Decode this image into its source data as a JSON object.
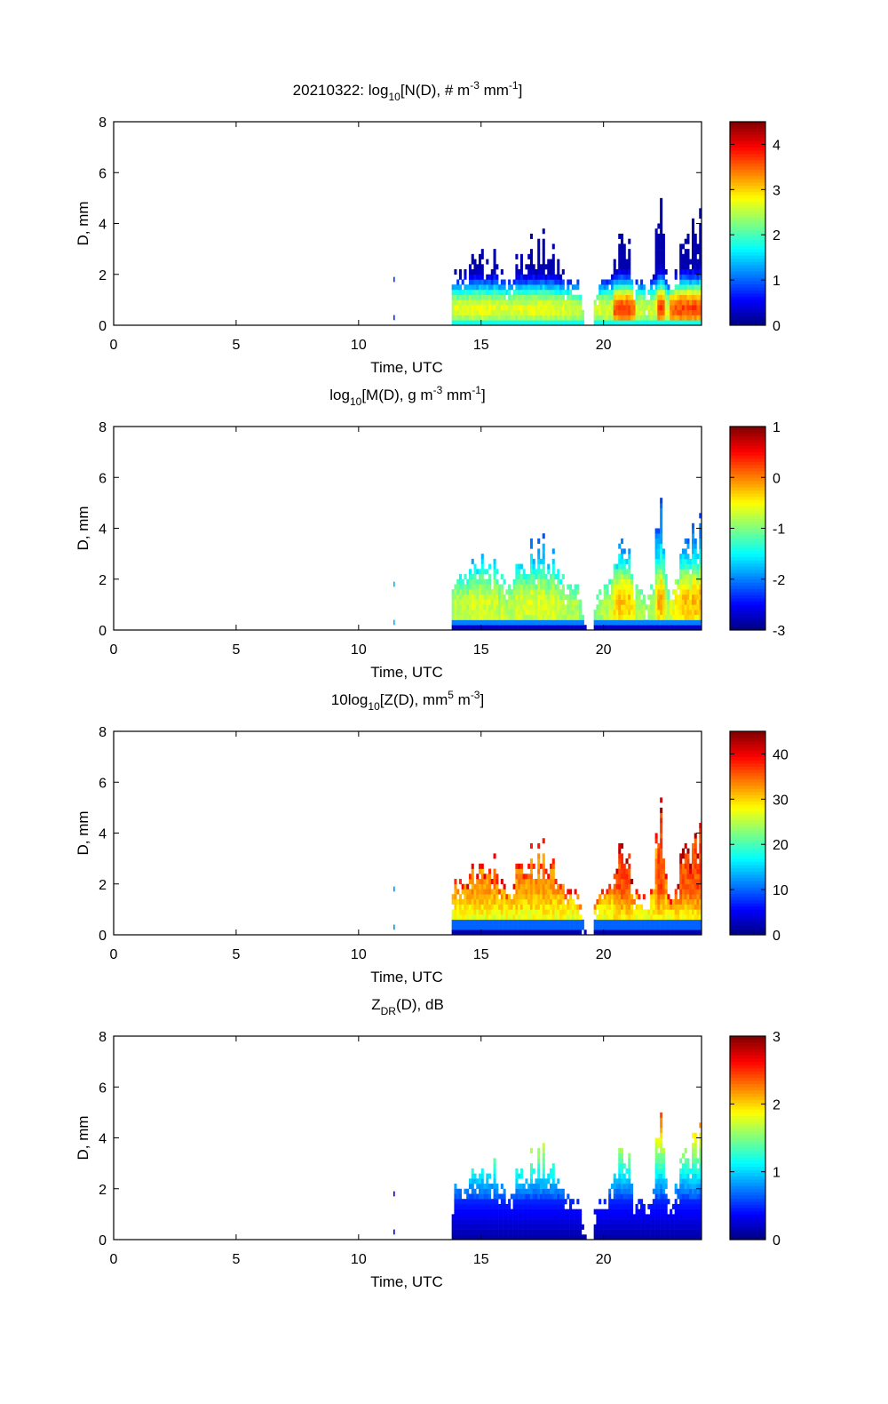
{
  "chart_data": [
    {
      "type": "heatmap",
      "title_parts": {
        "main": "20210322: log",
        "sub": "10",
        "rest": "[N(D), # m",
        "sup1": "-3",
        "mid": " mm",
        "sup2": "-1",
        "end": "]"
      },
      "xlabel": "Time, UTC",
      "ylabel": "D, mm",
      "xlim": [
        0,
        24
      ],
      "ylim": [
        0,
        8
      ],
      "xticks": [
        "0",
        "5",
        "10",
        "15",
        "20"
      ],
      "xtick_values": [
        0,
        5,
        10,
        15,
        20
      ],
      "yticks": [
        "0",
        "2",
        "4",
        "6",
        "8"
      ],
      "ytick_values": [
        0,
        2,
        4,
        6,
        8
      ],
      "colorbar": {
        "range": [
          0,
          4.5
        ],
        "ticks": [
          "0",
          "1",
          "2",
          "3",
          "4"
        ],
        "tick_values": [
          0,
          1,
          2,
          3,
          4
        ],
        "colormap": "jet"
      },
      "field": "N",
      "peak_value": 4.3,
      "floor_value": 0.2
    },
    {
      "type": "heatmap",
      "title_parts": {
        "main": "log",
        "sub": "10",
        "rest": "[M(D), g m",
        "sup1": "-3",
        "mid": " mm",
        "sup2": "-1",
        "end": "]"
      },
      "xlabel": "Time, UTC",
      "ylabel": "D, mm",
      "xlim": [
        0,
        24
      ],
      "ylim": [
        0,
        8
      ],
      "xticks": [
        "0",
        "5",
        "10",
        "15",
        "20"
      ],
      "xtick_values": [
        0,
        5,
        10,
        15,
        20
      ],
      "yticks": [
        "0",
        "2",
        "4",
        "6",
        "8"
      ],
      "ytick_values": [
        0,
        2,
        4,
        6,
        8
      ],
      "colorbar": {
        "range": [
          -3,
          1
        ],
        "ticks": [
          "1",
          "0",
          "-1",
          "-2",
          "-3"
        ],
        "tick_values": [
          1,
          0,
          -1,
          -2,
          -3
        ],
        "colormap": "jet"
      },
      "field": "M",
      "peak_value": 0.2,
      "floor_value": -2.9
    },
    {
      "type": "heatmap",
      "title_parts": {
        "main": "10log",
        "sub": "10",
        "rest": "[Z(D),  mm",
        "sup1": "5",
        "mid": " m",
        "sup2": "-3",
        "end": "]"
      },
      "xlabel": "Time, UTC",
      "ylabel": "D, mm",
      "xlim": [
        0,
        24
      ],
      "ylim": [
        0,
        8
      ],
      "xticks": [
        "0",
        "5",
        "10",
        "15",
        "20"
      ],
      "xtick_values": [
        0,
        5,
        10,
        15,
        20
      ],
      "yticks": [
        "0",
        "2",
        "4",
        "6",
        "8"
      ],
      "ytick_values": [
        0,
        2,
        4,
        6,
        8
      ],
      "colorbar": {
        "range": [
          0,
          45
        ],
        "ticks": [
          "40",
          "30",
          "20",
          "10",
          "0"
        ],
        "tick_values": [
          40,
          30,
          20,
          10,
          0
        ],
        "colormap": "jet"
      },
      "field": "Z",
      "peak_value": 44,
      "floor_value": 1
    },
    {
      "type": "heatmap",
      "title_parts": {
        "main": "Z",
        "sub": "DR",
        "rest": "(D), dB",
        "sup1": "",
        "mid": "",
        "sup2": "",
        "end": ""
      },
      "xlabel": "Time, UTC",
      "ylabel": "D, mm",
      "xlim": [
        0,
        24
      ],
      "ylim": [
        0,
        8
      ],
      "xticks": [
        "0",
        "5",
        "10",
        "15",
        "20"
      ],
      "xtick_values": [
        0,
        5,
        10,
        15,
        20
      ],
      "yticks": [
        "0",
        "2",
        "4",
        "6",
        "8"
      ],
      "ytick_values": [
        0,
        2,
        4,
        6,
        8
      ],
      "colorbar": {
        "range": [
          0,
          3
        ],
        "ticks": [
          "3",
          "2",
          "1",
          "0"
        ],
        "tick_values": [
          3,
          2,
          1,
          0
        ],
        "colormap": "jet"
      },
      "field": "ZDR",
      "peak_value": 3,
      "floor_value": 0
    }
  ],
  "precip_envelope": {
    "time_hours": [
      11.4,
      13.8,
      14.2,
      14.6,
      15.0,
      15.5,
      16.0,
      16.5,
      17.0,
      17.5,
      18.0,
      18.5,
      19.0,
      19.3,
      19.7,
      20.2,
      20.6,
      21.0,
      21.3,
      21.7,
      22.0,
      22.3,
      22.4,
      22.6,
      22.9,
      23.3,
      23.6,
      24.0
    ],
    "max_diameter_mm": [
      1.7,
      1.8,
      2.4,
      2.4,
      2.6,
      2.8,
      2.0,
      2.6,
      3.0,
      3.2,
      2.6,
      1.8,
      1.6,
      0,
      1.4,
      2.0,
      3.0,
      3.2,
      2.0,
      1.2,
      2.0,
      5.0,
      4.0,
      1.4,
      1.6,
      3.6,
      3.4,
      4.6
    ]
  }
}
